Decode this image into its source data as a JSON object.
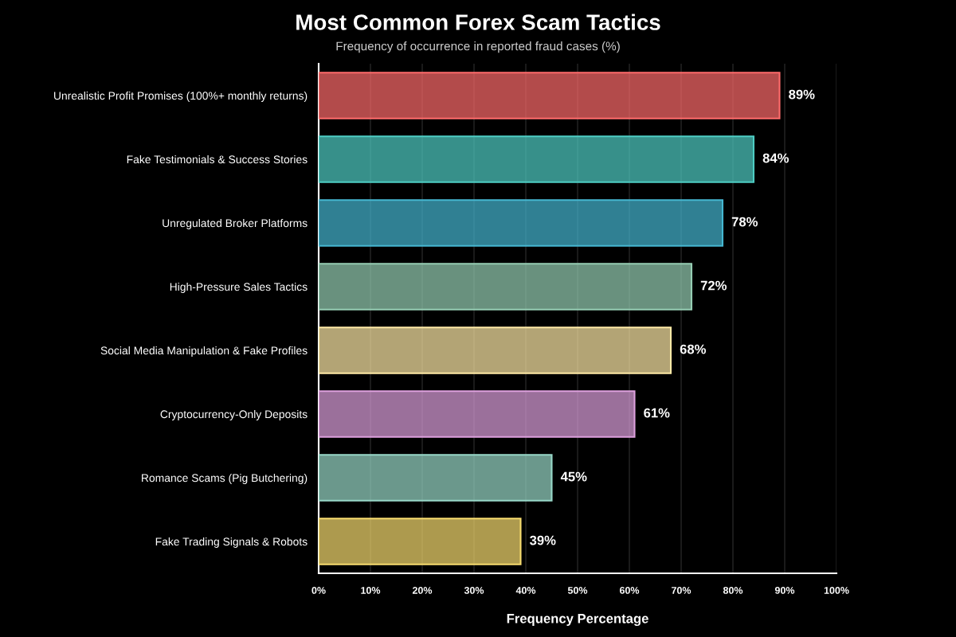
{
  "chart_data": {
    "type": "bar",
    "orientation": "horizontal",
    "title": "Most Common Forex Scam Tactics",
    "subtitle": "Frequency of occurrence in reported fraud cases (%)",
    "xlabel": "Frequency Percentage",
    "categories": [
      "Unrealistic Profit Promises (100%+ monthly returns)",
      "Fake Testimonials & Success Stories",
      "Unregulated Broker Platforms",
      "High-Pressure Sales Tactics",
      "Social Media Manipulation & Fake Profiles",
      "Cryptocurrency-Only Deposits",
      "Romance Scams (Pig Butchering)",
      "Fake Trading Signals & Robots"
    ],
    "values": [
      89,
      84,
      78,
      72,
      68,
      61,
      45,
      39
    ],
    "colors": [
      "#ff6b6b",
      "#4ecdc4",
      "#45b7d1",
      "#96ceb4",
      "#ffeaa7",
      "#dda0dd",
      "#98d8c8",
      "#f7dc6f"
    ],
    "value_labels": [
      "89%",
      "84%",
      "78%",
      "72%",
      "68%",
      "61%",
      "45%",
      "39%"
    ],
    "xlim": [
      0,
      100
    ],
    "xticks": [
      {
        "value": 0,
        "label": "0%"
      },
      {
        "value": 10,
        "label": "10%"
      },
      {
        "value": 20,
        "label": "20%"
      },
      {
        "value": 30,
        "label": "30%"
      },
      {
        "value": 40,
        "label": "40%"
      },
      {
        "value": 50,
        "label": "50%"
      },
      {
        "value": 60,
        "label": "60%"
      },
      {
        "value": 70,
        "label": "70%"
      },
      {
        "value": 80,
        "label": "80%"
      },
      {
        "value": 90,
        "label": "90%"
      },
      {
        "value": 100,
        "label": "100%"
      }
    ],
    "grid": "x"
  }
}
